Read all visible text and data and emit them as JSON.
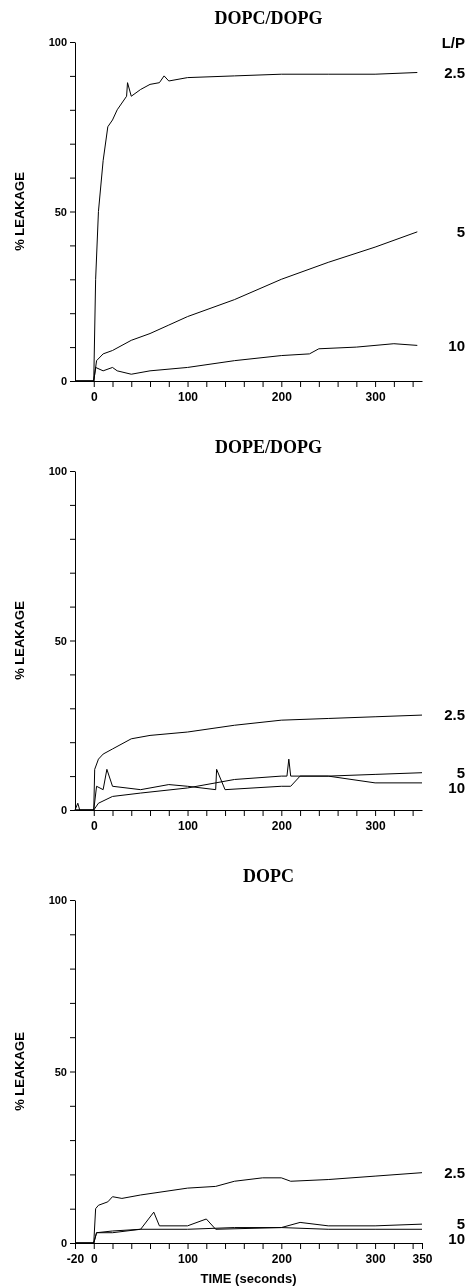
{
  "chart_data": [
    {
      "type": "line",
      "title": "DOPC/DOPG",
      "ylabel": "% LEAKAGE",
      "legend_title": "L/P",
      "xlim": [
        -20,
        350
      ],
      "ylim": [
        0,
        100
      ],
      "xticks": [
        {
          "value": 0,
          "label": "0"
        },
        {
          "value": 20,
          "label": null
        },
        {
          "value": 40,
          "label": null
        },
        {
          "value": 60,
          "label": null
        },
        {
          "value": 80,
          "label": null
        },
        {
          "value": 100,
          "label": "100"
        },
        {
          "value": 120,
          "label": null
        },
        {
          "value": 140,
          "label": null
        },
        {
          "value": 160,
          "label": null
        },
        {
          "value": 180,
          "label": null
        },
        {
          "value": 200,
          "label": "200"
        },
        {
          "value": 220,
          "label": null
        },
        {
          "value": 240,
          "label": null
        },
        {
          "value": 260,
          "label": null
        },
        {
          "value": 280,
          "label": null
        },
        {
          "value": 300,
          "label": "300"
        },
        {
          "value": 320,
          "label": null
        },
        {
          "value": 340,
          "label": null
        }
      ],
      "yticks": [
        {
          "value": 0,
          "label": "0"
        },
        {
          "value": 10,
          "label": null
        },
        {
          "value": 20,
          "label": null
        },
        {
          "value": 30,
          "label": null
        },
        {
          "value": 40,
          "label": null
        },
        {
          "value": 50,
          "label": "50"
        },
        {
          "value": 60,
          "label": null
        },
        {
          "value": 70,
          "label": null
        },
        {
          "value": 80,
          "label": null
        },
        {
          "value": 90,
          "label": null
        },
        {
          "value": 100,
          "label": "100"
        }
      ],
      "grid": false,
      "marker": "none",
      "line_style": "solid",
      "series": [
        {
          "name": "2.5",
          "color": "#000000",
          "x": [
            -20,
            0,
            2,
            5,
            10,
            15,
            20,
            25,
            30,
            35,
            36,
            40,
            50,
            60,
            70,
            75,
            80,
            100,
            150,
            200,
            250,
            300,
            345
          ],
          "values": [
            0,
            0,
            30,
            50,
            65,
            75,
            77,
            80,
            82,
            84,
            88,
            84,
            86,
            87.5,
            88,
            90,
            88.5,
            89.5,
            90,
            90.5,
            90.5,
            90.5,
            91
          ]
        },
        {
          "name": "5",
          "color": "#000000",
          "x": [
            -20,
            0,
            3,
            10,
            20,
            40,
            60,
            80,
            100,
            150,
            200,
            250,
            300,
            345
          ],
          "values": [
            0,
            0,
            6,
            8,
            9,
            12,
            14,
            16.5,
            19,
            24,
            30,
            35,
            39.5,
            44
          ]
        },
        {
          "name": "10",
          "color": "#000000",
          "x": [
            -20,
            0,
            2,
            10,
            20,
            25,
            40,
            60,
            100,
            150,
            200,
            230,
            240,
            280,
            320,
            345
          ],
          "values": [
            0,
            0,
            4,
            3,
            4,
            3,
            2,
            3,
            4,
            6,
            7.5,
            8,
            9.5,
            10,
            11,
            10.5
          ]
        }
      ]
    },
    {
      "type": "line",
      "title": "DOPE/DOPG",
      "ylabel": "% LEAKAGE",
      "xlim": [
        -20,
        350
      ],
      "ylim": [
        0,
        100
      ],
      "xticks": [
        {
          "value": 0,
          "label": "0"
        },
        {
          "value": 20,
          "label": null
        },
        {
          "value": 40,
          "label": null
        },
        {
          "value": 60,
          "label": null
        },
        {
          "value": 80,
          "label": null
        },
        {
          "value": 100,
          "label": "100"
        },
        {
          "value": 120,
          "label": null
        },
        {
          "value": 140,
          "label": null
        },
        {
          "value": 160,
          "label": null
        },
        {
          "value": 180,
          "label": null
        },
        {
          "value": 200,
          "label": "200"
        },
        {
          "value": 220,
          "label": null
        },
        {
          "value": 240,
          "label": null
        },
        {
          "value": 260,
          "label": null
        },
        {
          "value": 280,
          "label": null
        },
        {
          "value": 300,
          "label": "300"
        },
        {
          "value": 320,
          "label": null
        },
        {
          "value": 340,
          "label": null
        }
      ],
      "yticks": [
        {
          "value": 0,
          "label": "0"
        },
        {
          "value": 10,
          "label": null
        },
        {
          "value": 20,
          "label": null
        },
        {
          "value": 30,
          "label": null
        },
        {
          "value": 40,
          "label": null
        },
        {
          "value": 50,
          "label": "50"
        },
        {
          "value": 60,
          "label": null
        },
        {
          "value": 70,
          "label": null
        },
        {
          "value": 80,
          "label": null
        },
        {
          "value": 90,
          "label": null
        },
        {
          "value": 100,
          "label": "100"
        }
      ],
      "grid": false,
      "marker": "none",
      "line_style": "solid",
      "series": [
        {
          "name": "2.5",
          "color": "#000000",
          "x": [
            -20,
            0,
            1,
            5,
            10,
            20,
            40,
            60,
            100,
            150,
            200,
            250,
            300,
            350
          ],
          "values": [
            0,
            0,
            12,
            15,
            16.5,
            18,
            21,
            22,
            23,
            25,
            26.5,
            27,
            27.5,
            28
          ]
        },
        {
          "name": "5",
          "color": "#000000",
          "x": [
            -20,
            0,
            5,
            20,
            50,
            100,
            150,
            200,
            206,
            208,
            210,
            250,
            300,
            350
          ],
          "values": [
            0,
            0,
            2,
            4,
            5,
            6.5,
            9,
            10,
            10,
            15,
            10,
            10,
            10.5,
            11
          ]
        },
        {
          "name": "10",
          "color": "#000000",
          "x": [
            -20,
            -17,
            -15,
            0,
            3,
            10,
            14,
            20,
            50,
            80,
            100,
            130,
            131,
            140,
            200,
            210,
            220,
            250,
            300,
            350
          ],
          "values": [
            0,
            2,
            0,
            0,
            7,
            6,
            12,
            7,
            6,
            7.5,
            7,
            6,
            12,
            6,
            7,
            7,
            10,
            10,
            8,
            8
          ]
        }
      ]
    },
    {
      "type": "line",
      "title": "DOPC",
      "ylabel": "% LEAKAGE",
      "xlabel": "TIME (seconds)",
      "xlim": [
        -20,
        350
      ],
      "ylim": [
        0,
        100
      ],
      "xticks": [
        {
          "value": -20,
          "label": "-20"
        },
        {
          "value": 0,
          "label": "0"
        },
        {
          "value": 20,
          "label": null
        },
        {
          "value": 40,
          "label": null
        },
        {
          "value": 60,
          "label": null
        },
        {
          "value": 80,
          "label": null
        },
        {
          "value": 100,
          "label": "100"
        },
        {
          "value": 120,
          "label": null
        },
        {
          "value": 140,
          "label": null
        },
        {
          "value": 160,
          "label": null
        },
        {
          "value": 180,
          "label": null
        },
        {
          "value": 200,
          "label": "200"
        },
        {
          "value": 220,
          "label": null
        },
        {
          "value": 240,
          "label": null
        },
        {
          "value": 260,
          "label": null
        },
        {
          "value": 280,
          "label": null
        },
        {
          "value": 300,
          "label": "300"
        },
        {
          "value": 320,
          "label": null
        },
        {
          "value": 340,
          "label": null
        },
        {
          "value": 350,
          "label": "350"
        }
      ],
      "yticks": [
        {
          "value": 0,
          "label": "0"
        },
        {
          "value": 10,
          "label": null
        },
        {
          "value": 20,
          "label": null
        },
        {
          "value": 30,
          "label": null
        },
        {
          "value": 40,
          "label": null
        },
        {
          "value": 50,
          "label": "50"
        },
        {
          "value": 60,
          "label": null
        },
        {
          "value": 70,
          "label": null
        },
        {
          "value": 80,
          "label": null
        },
        {
          "value": 90,
          "label": null
        },
        {
          "value": 100,
          "label": "100"
        }
      ],
      "grid": false,
      "marker": "none",
      "line_style": "solid",
      "series": [
        {
          "name": "2.5",
          "color": "#000000",
          "x": [
            -20,
            0,
            2,
            5,
            15,
            20,
            30,
            50,
            100,
            130,
            150,
            180,
            200,
            210,
            250,
            300,
            350
          ],
          "values": [
            0,
            0,
            10,
            11,
            12,
            13.5,
            13,
            14,
            16,
            16.5,
            18,
            19,
            19,
            18,
            18.5,
            19.5,
            20.5
          ]
        },
        {
          "name": "5",
          "color": "#000000",
          "x": [
            -20,
            0,
            3,
            20,
            50,
            64,
            70,
            100,
            120,
            130,
            200,
            220,
            250,
            300,
            350
          ],
          "values": [
            0,
            0,
            3,
            3.5,
            4,
            9,
            5,
            5,
            7,
            4,
            4.5,
            6,
            5,
            5,
            5.5
          ]
        },
        {
          "name": "10",
          "color": "#000000",
          "x": [
            -20,
            0,
            3,
            20,
            50,
            100,
            150,
            200,
            250,
            300,
            350
          ],
          "values": [
            0,
            0,
            3,
            3,
            4,
            4,
            4.5,
            4.5,
            4,
            4,
            4
          ]
        }
      ]
    }
  ]
}
